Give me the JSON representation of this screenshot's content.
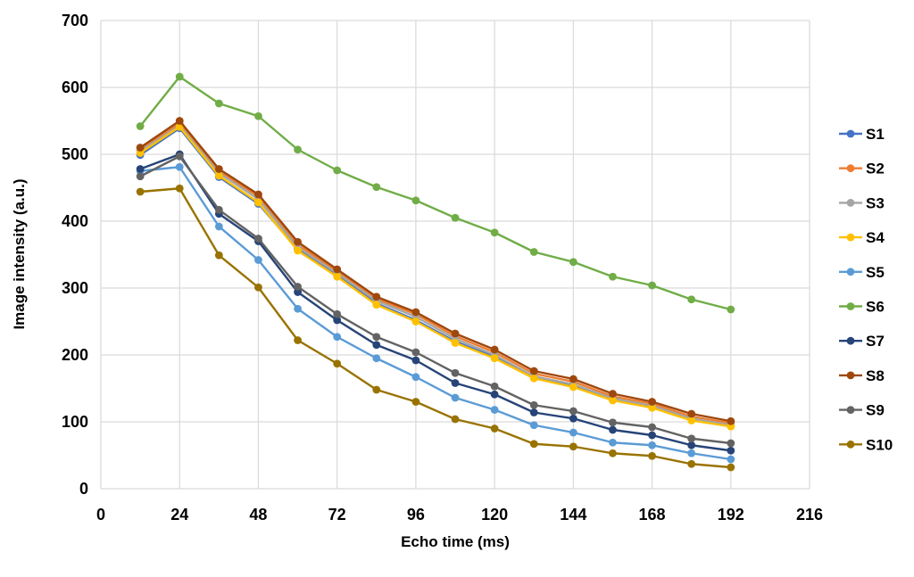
{
  "chart_data": {
    "type": "line",
    "title": "",
    "xlabel": "Echo time (ms)",
    "ylabel": "Image intensity (a.u.)",
    "xlim": [
      0,
      216
    ],
    "ylim": [
      0,
      700
    ],
    "x_ticks": [
      0,
      24,
      48,
      72,
      96,
      120,
      144,
      168,
      192,
      216
    ],
    "y_ticks": [
      0,
      100,
      200,
      300,
      400,
      500,
      600,
      700
    ],
    "grid": true,
    "gridline_color": "#D9D9D9",
    "text_color": "#000000",
    "legend_position": "right",
    "marker": "circle",
    "x": [
      12,
      24,
      36,
      48,
      60,
      72,
      84,
      96,
      108,
      120,
      132,
      144,
      156,
      168,
      180,
      192
    ],
    "series": [
      {
        "name": "S1",
        "color": "#4472C4",
        "values": [
          499,
          539,
          466,
          426,
          358,
          319,
          277,
          252,
          220,
          197,
          167,
          154,
          133,
          123,
          104,
          95
        ]
      },
      {
        "name": "S2",
        "color": "#ED7D31",
        "values": [
          508,
          546,
          475,
          437,
          365,
          325,
          284,
          261,
          228,
          204,
          172,
          160,
          138,
          127,
          108,
          98
        ]
      },
      {
        "name": "S3",
        "color": "#A5A5A5",
        "values": [
          505,
          543,
          472,
          433,
          361,
          322,
          281,
          257,
          224,
          200,
          168,
          156,
          135,
          124,
          105,
          95
        ]
      },
      {
        "name": "S4",
        "color": "#FFC000",
        "values": [
          502,
          541,
          468,
          428,
          356,
          317,
          275,
          250,
          218,
          195,
          165,
          152,
          132,
          121,
          102,
          93
        ]
      },
      {
        "name": "S5",
        "color": "#5B9BD5",
        "values": [
          475,
          481,
          392,
          342,
          269,
          227,
          195,
          167,
          136,
          118,
          95,
          84,
          69,
          65,
          53,
          44
        ]
      },
      {
        "name": "S6",
        "color": "#70AD47",
        "values": [
          542,
          616,
          576,
          557,
          507,
          476,
          451,
          431,
          405,
          383,
          354,
          339,
          317,
          304,
          283,
          268
        ]
      },
      {
        "name": "S7",
        "color": "#264478",
        "values": [
          478,
          500,
          411,
          370,
          294,
          252,
          215,
          192,
          158,
          141,
          114,
          105,
          88,
          80,
          65,
          57
        ]
      },
      {
        "name": "S8",
        "color": "#9E480E",
        "values": [
          510,
          550,
          478,
          440,
          369,
          328,
          287,
          264,
          232,
          208,
          176,
          164,
          142,
          130,
          112,
          101
        ]
      },
      {
        "name": "S9",
        "color": "#636363",
        "values": [
          467,
          497,
          417,
          374,
          302,
          261,
          227,
          204,
          173,
          153,
          125,
          116,
          99,
          92,
          75,
          68
        ]
      },
      {
        "name": "S10",
        "color": "#997300",
        "values": [
          444,
          449,
          349,
          301,
          222,
          187,
          148,
          130,
          104,
          90,
          67,
          63,
          53,
          49,
          37,
          32
        ]
      }
    ]
  }
}
